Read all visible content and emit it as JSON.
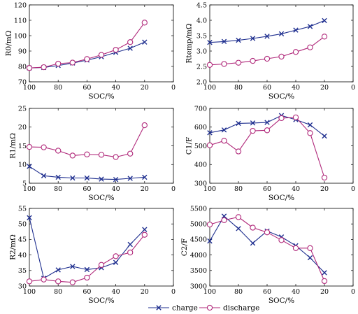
{
  "colors": {
    "charge": "#1f2f8f",
    "discharge": "#b0287a"
  },
  "legend": {
    "charge": "charge",
    "discharge": "discharge"
  },
  "chart_data": [
    {
      "id": "r0",
      "type": "line",
      "ylabel": "R0/mΩ",
      "xlabel": "SOC/%",
      "xlim": [
        100,
        0
      ],
      "ylim": [
        70,
        120
      ],
      "xticks": [
        "100",
        "80",
        "60",
        "40",
        "20",
        "0"
      ],
      "xtick_values": [
        100,
        80,
        60,
        40,
        20,
        0
      ],
      "yticks": [
        "70",
        "80",
        "90",
        "100",
        "110",
        "120"
      ],
      "ytick_values": [
        70,
        80,
        90,
        100,
        110,
        120
      ],
      "x": [
        100,
        90,
        80,
        70,
        60,
        50,
        40,
        30,
        20
      ],
      "series": [
        {
          "name": "charge",
          "values": [
            79,
            79.3,
            80.6,
            82.2,
            84.1,
            86.3,
            89.1,
            91.8,
            95.8
          ]
        },
        {
          "name": "discharge",
          "values": [
            79,
            79.5,
            81.8,
            82.5,
            84.8,
            87.5,
            90.8,
            95.8,
            108.5
          ]
        }
      ]
    },
    {
      "id": "rtemp",
      "type": "line",
      "ylabel": "Rtemp/mΩ",
      "xlabel": "SOC/%",
      "xlim": [
        100,
        0
      ],
      "ylim": [
        2.0,
        4.5
      ],
      "xticks": [
        "100",
        "80",
        "60",
        "40",
        "20",
        "0"
      ],
      "xtick_values": [
        100,
        80,
        60,
        40,
        20,
        0
      ],
      "yticks": [
        "2.0",
        "2.5",
        "3.0",
        "3.5",
        "4.0",
        "4.5"
      ],
      "ytick_values": [
        2.0,
        2.5,
        3.0,
        3.5,
        4.0,
        4.5
      ],
      "x": [
        100,
        90,
        80,
        70,
        60,
        50,
        40,
        30,
        20
      ],
      "series": [
        {
          "name": "charge",
          "values": [
            3.28,
            3.31,
            3.35,
            3.41,
            3.48,
            3.56,
            3.68,
            3.8,
            3.99
          ]
        },
        {
          "name": "discharge",
          "values": [
            2.55,
            2.58,
            2.62,
            2.68,
            2.75,
            2.82,
            2.97,
            3.12,
            3.47
          ]
        }
      ]
    },
    {
      "id": "r1",
      "type": "line",
      "ylabel": "R1/mΩ",
      "xlabel": "SOC/%",
      "xlim": [
        100,
        0
      ],
      "ylim": [
        5,
        25
      ],
      "xticks": [
        "100",
        "80",
        "60",
        "40",
        "20",
        "0"
      ],
      "xtick_values": [
        100,
        80,
        60,
        40,
        20,
        0
      ],
      "yticks": [
        "5",
        "10",
        "15",
        "20",
        "25"
      ],
      "ytick_values": [
        5,
        10,
        15,
        20,
        25
      ],
      "x": [
        100,
        90,
        80,
        70,
        60,
        50,
        40,
        30,
        20
      ],
      "series": [
        {
          "name": "charge",
          "values": [
            9.5,
            7.0,
            6.6,
            6.4,
            6.4,
            6.1,
            6.0,
            6.3,
            6.6
          ]
        },
        {
          "name": "discharge",
          "values": [
            14.7,
            14.6,
            13.7,
            12.4,
            12.7,
            12.6,
            12.0,
            12.9,
            20.5
          ]
        }
      ]
    },
    {
      "id": "c1",
      "type": "line",
      "ylabel": "C1/F",
      "xlabel": "SOC/%",
      "xlim": [
        100,
        0
      ],
      "ylim": [
        300,
        700
      ],
      "xticks": [
        "100",
        "80",
        "60",
        "40",
        "20",
        "0"
      ],
      "xtick_values": [
        100,
        80,
        60,
        40,
        20,
        0
      ],
      "yticks": [
        "300",
        "400",
        "500",
        "600",
        "700"
      ],
      "ytick_values": [
        300,
        400,
        500,
        600,
        700
      ],
      "x": [
        100,
        90,
        80,
        70,
        60,
        50,
        40,
        30,
        20
      ],
      "series": [
        {
          "name": "charge",
          "values": [
            570,
            585,
            620,
            622,
            625,
            662,
            640,
            612,
            552
          ]
        },
        {
          "name": "discharge",
          "values": [
            503,
            527,
            470,
            580,
            583,
            648,
            652,
            568,
            330
          ]
        }
      ]
    },
    {
      "id": "r2",
      "type": "line",
      "ylabel": "R2/mΩ",
      "xlabel": "SOC/%",
      "xlim": [
        100,
        0
      ],
      "ylim": [
        30,
        55
      ],
      "xticks": [
        "100",
        "80",
        "60",
        "40",
        "20",
        "0"
      ],
      "xtick_values": [
        100,
        80,
        60,
        40,
        20,
        0
      ],
      "yticks": [
        "30",
        "35",
        "40",
        "45",
        "50",
        "55"
      ],
      "ytick_values": [
        30,
        35,
        40,
        45,
        50,
        55
      ],
      "x": [
        100,
        90,
        80,
        70,
        60,
        50,
        40,
        30,
        20
      ],
      "series": [
        {
          "name": "charge",
          "values": [
            52,
            32.5,
            35.2,
            36.3,
            35.3,
            35.9,
            37.6,
            43.4,
            48.2
          ]
        },
        {
          "name": "discharge",
          "values": [
            31.5,
            32.1,
            31.5,
            31.2,
            32.7,
            36.8,
            39.6,
            40.8,
            46.5
          ]
        }
      ]
    },
    {
      "id": "c2",
      "type": "line",
      "ylabel": "C2/F",
      "xlabel": "SOC/%",
      "xlim": [
        100,
        0
      ],
      "ylim": [
        3000,
        5500
      ],
      "xticks": [
        "100",
        "80",
        "60",
        "40",
        "20",
        "0"
      ],
      "xtick_values": [
        100,
        80,
        60,
        40,
        20,
        0
      ],
      "yticks": [
        "3000",
        "3500",
        "4000",
        "4500",
        "5000",
        "5500"
      ],
      "ytick_values": [
        3000,
        3500,
        4000,
        4500,
        5000,
        5500
      ],
      "x": [
        100,
        90,
        80,
        70,
        60,
        50,
        40,
        30,
        20
      ],
      "series": [
        {
          "name": "charge",
          "values": [
            4450,
            5250,
            4850,
            4380,
            4770,
            4580,
            4300,
            3910,
            3430
          ]
        },
        {
          "name": "discharge",
          "values": [
            4980,
            5120,
            5220,
            4880,
            4730,
            4480,
            4220,
            4220,
            3160
          ]
        }
      ]
    }
  ]
}
